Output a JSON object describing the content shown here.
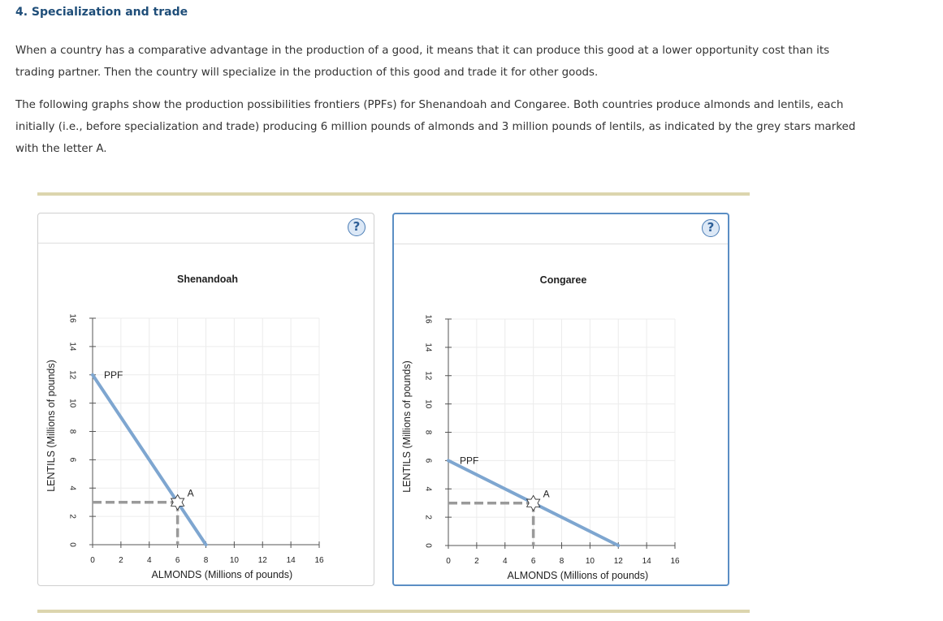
{
  "page": {
    "heading": "4. Specialization and trade",
    "para1": "When a country has a comparative advantage in the production of a good, it means that it can produce this good at a lower opportunity cost than its trading partner. Then the country will specialize in the production of this good and trade it for other goods.",
    "para2": "The following graphs show the production possibilities frontiers (PPFs) for Shenandoah and Congaree. Both countries produce almonds and lentils, each initially (i.e., before specialization and trade) producing 6 million pounds of almonds and 3 million pounds of lentils, as indicated by the grey stars marked with the letter A."
  },
  "help_label": "?",
  "colors": {
    "ppf_line": "#7ea6d0",
    "guide": "#9a9a9a",
    "accent_border": "#5b8ec4",
    "rule": "#dcd5ae"
  },
  "chart_data": [
    {
      "type": "line",
      "title": "Shenandoah",
      "xlabel": "ALMONDS (Millions of pounds)",
      "ylabel": "LENTILS (Millions of pounds)",
      "xlim": [
        0,
        16
      ],
      "ylim": [
        0,
        16
      ],
      "xticks": [
        "0",
        "2",
        "4",
        "6",
        "8",
        "10",
        "12",
        "14",
        "16"
      ],
      "yticks": [
        "0",
        "2",
        "4",
        "6",
        "8",
        "10",
        "12",
        "14",
        "16"
      ],
      "grid": true,
      "series": [
        {
          "name": "PPF",
          "x": [
            0,
            8
          ],
          "y": [
            12,
            0
          ]
        }
      ],
      "point": {
        "label": "A",
        "x": 6,
        "y": 3
      }
    },
    {
      "type": "line",
      "title": "Congaree",
      "xlabel": "ALMONDS (Millions of pounds)",
      "ylabel": "LENTILS (Millions of pounds)",
      "xlim": [
        0,
        16
      ],
      "ylim": [
        0,
        16
      ],
      "xticks": [
        "0",
        "2",
        "4",
        "6",
        "8",
        "10",
        "12",
        "14",
        "16"
      ],
      "yticks": [
        "0",
        "2",
        "4",
        "6",
        "8",
        "10",
        "12",
        "14",
        "16"
      ],
      "grid": true,
      "series": [
        {
          "name": "PPF",
          "x": [
            0,
            12
          ],
          "y": [
            6,
            0
          ]
        }
      ],
      "point": {
        "label": "A",
        "x": 6,
        "y": 3
      }
    }
  ]
}
